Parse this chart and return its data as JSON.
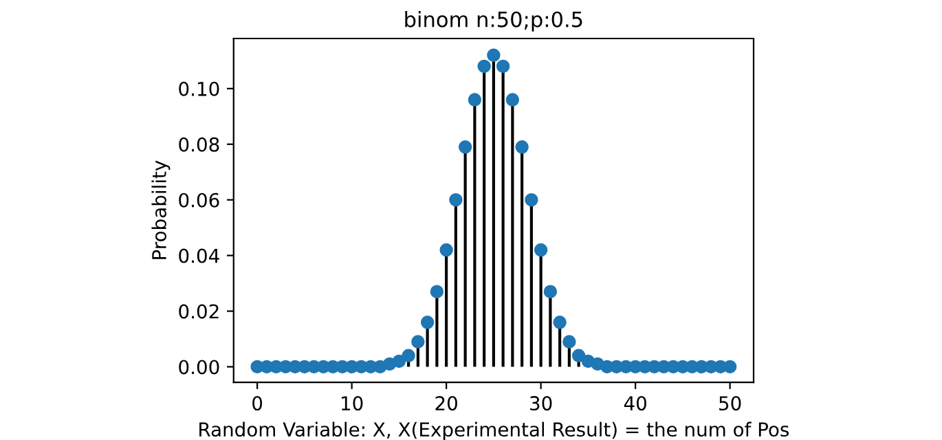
{
  "chart_data": {
    "type": "lollipop",
    "title": "binom n:50;p:0.5",
    "xlabel": "Random Variable: X, X(Experimental Result) = the num of Pos",
    "ylabel": "Probability",
    "x": [
      0,
      1,
      2,
      3,
      4,
      5,
      6,
      7,
      8,
      9,
      10,
      11,
      12,
      13,
      14,
      15,
      16,
      17,
      18,
      19,
      20,
      21,
      22,
      23,
      24,
      25,
      26,
      27,
      28,
      29,
      30,
      31,
      32,
      33,
      34,
      35,
      36,
      37,
      38,
      39,
      40,
      41,
      42,
      43,
      44,
      45,
      46,
      47,
      48,
      49,
      50
    ],
    "values": [
      0,
      0,
      0,
      0,
      0,
      0,
      0,
      0,
      0,
      0,
      0,
      0,
      0,
      0,
      0.001,
      0.002,
      0.004,
      0.009,
      0.016,
      0.027,
      0.042,
      0.06,
      0.079,
      0.096,
      0.108,
      0.112,
      0.108,
      0.096,
      0.079,
      0.06,
      0.042,
      0.027,
      0.016,
      0.009,
      0.004,
      0.002,
      0.001,
      0,
      0,
      0,
      0,
      0,
      0,
      0,
      0,
      0,
      0,
      0,
      0,
      0,
      0
    ],
    "color": "#1f77b4",
    "marker": "circle",
    "xlim": [
      -2.5,
      52.5
    ],
    "xticks": [
      0,
      10,
      20,
      30,
      40,
      50
    ],
    "ylim": [
      -0.0056,
      0.118
    ],
    "yticks": [
      {
        "value": 0,
        "label": "0.00"
      },
      {
        "value": 0.02,
        "label": "0.02"
      },
      {
        "value": 0.04,
        "label": "0.04"
      },
      {
        "value": 0.06,
        "label": "0.06"
      },
      {
        "value": 0.08,
        "label": "0.08"
      },
      {
        "value": 0.1,
        "label": "0.10"
      }
    ],
    "grid": false,
    "legend": false
  }
}
